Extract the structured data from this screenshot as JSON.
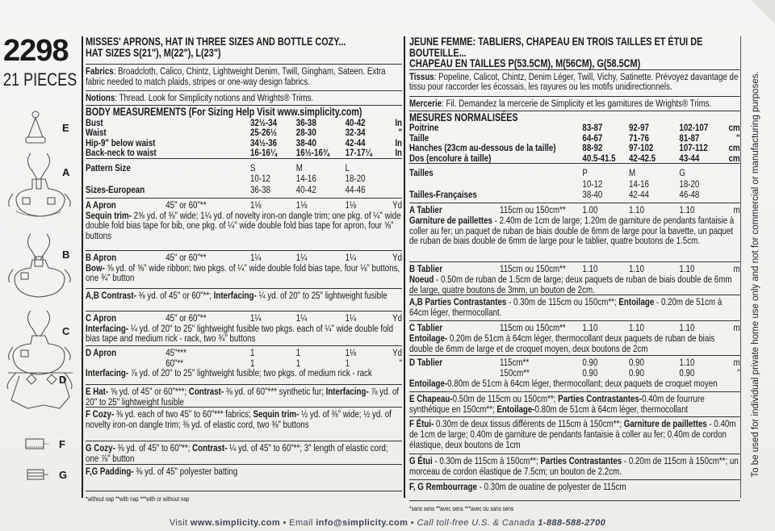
{
  "header": {
    "pattern_number": "2298",
    "pieces": "21 PIECES"
  },
  "views": [
    "E",
    "A",
    "B",
    "C",
    "D",
    "F",
    "G"
  ],
  "english": {
    "title": [
      "MISSES' APRONS, HAT IN THREE SIZES AND BOTTLE COZY...",
      "HAT SIZES S(21\"), M(22\"), L(23\")"
    ],
    "fabrics": [
      {
        "bold": "Fabrics",
        "text": ": Broadcloth, Calico, Chintz, Lightweight Denim, Twill, Gingham, Sateen. Extra fabric needed to match plaids, stripes or one-way design fabrics."
      }
    ],
    "notions": [
      {
        "bold": "Notions",
        "text": ": Thread. Look for Simplicity notions and Wrights® Trims."
      }
    ],
    "measurements": {
      "heading": "BODY MEASUREMENTS (For Sizing Help Visit www.simplicity.com)",
      "rows": [
        {
          "label": "Bust",
          "values": [
            "32½-34",
            "36-38",
            "40-42"
          ],
          "unit": "In"
        },
        {
          "label": "Waist",
          "values": [
            "25-26½",
            "28-30",
            "32-34"
          ],
          "unit": "\""
        },
        {
          "label": "Hip-9\" below waist",
          "values": [
            "34½-36",
            "38-40",
            "42-44"
          ],
          "unit": "In"
        },
        {
          "label": "Back-neck to waist",
          "values": [
            "16-16¼",
            "16½-16¾",
            "17-17¼"
          ],
          "unit": "In"
        }
      ]
    },
    "sizes": {
      "rows": [
        {
          "label": "Pattern Size",
          "values": [
            "S",
            "M",
            "L"
          ]
        },
        {
          "label": "",
          "values": [
            "10-12",
            "14-16",
            "18-20"
          ]
        },
        {
          "label": "Sizes-European",
          "values": [
            "36-38",
            "40-42",
            "44-46"
          ]
        }
      ]
    },
    "yardage": [
      {
        "rows": [
          {
            "name": "A Apron",
            "width": "45\" or 60\"**",
            "values": [
              "1⅛",
              "1⅛",
              "1⅛"
            ],
            "unit": "Yd"
          }
        ],
        "notes": [
          {
            "bold": "Sequin trim-",
            "text": " 2⅝ yd. of ⅜\" wide; 1¼ yd. of novelty iron-on dangle trim; one pkg. of ¼\" wide double fold bias tape for bib, one pkg. of ¼\" wide double fold bias tape for apron, four ⅝\" buttons"
          }
        ]
      },
      {
        "rows": [
          {
            "name": "B Apron",
            "width": "45\" or 60\"**",
            "values": [
              "1¼",
              "1¼",
              "1¼"
            ],
            "unit": "Yd"
          }
        ],
        "notes": [
          {
            "bold": "Bow-",
            "text": " ⅝ yd. of ⅝\" wide ribbon; two pkgs. of ¼\" wide double fold bias tape, four ⅛\" buttons, one ¾\" button"
          }
        ]
      },
      {
        "rows": [],
        "notes": [
          {
            "bold": "A,B Contrast-",
            "text": " ⅜ yd. of 45\" or 60\"**; "
          },
          {
            "bold": "Interfacing-",
            "text": " ¼ yd. of 20\" to 25\" lightweight fusible"
          }
        ]
      },
      {
        "rows": [
          {
            "name": "C Apron",
            "width": "45\" or 60\"**",
            "values": [
              "1¼",
              "1¼",
              "1¼"
            ],
            "unit": "Yd"
          }
        ],
        "notes": [
          {
            "bold": "Interfacing-",
            "text": " ¼ yd. of 20\" to 25\" lightweight fusible two pkgs. each of ¼\" wide double fold bias tape and medium rick - rack, two ¾\" buttons"
          }
        ]
      },
      {
        "rows": [
          {
            "name": "D Apron",
            "width": "45\"***",
            "values": [
              "1",
              "1",
              "1⅛"
            ],
            "unit": "Yd"
          },
          {
            "name": "",
            "width": "60\"**",
            "values": [
              "1",
              "1",
              "1"
            ],
            "unit": "\""
          }
        ],
        "notes": [
          {
            "bold": "Interfacing-",
            "text": " ⅞ yd. of 20\" to 25\" lightweight fusible; two pkgs. of medium rick - rack"
          }
        ]
      },
      {
        "rows": [],
        "notes": [
          {
            "bold": "E Hat-",
            "text": " ⅝ yd. of 45\" or 60\"***; "
          },
          {
            "bold": "Contrast-",
            "text": " ⅜ yd. of 60\"*** synthetic fur; "
          },
          {
            "bold": "Interfacing-",
            "text": " ⅞ yd. of 20\" to 25\" lightweight fusible"
          }
        ]
      },
      {
        "rows": [],
        "notes": [
          {
            "bold": "F Cozy-",
            "text": " ⅜ yd. each of two 45\" to 60\"*** fabrics; "
          },
          {
            "bold": "Sequin trim-",
            "text": " ½ yd. of ⅜\" wide; ½ yd. of novelty iron-on dangle trim; ⅜ yd. of elastic cord, two ⅜\" buttons"
          }
        ]
      },
      {
        "rows": [],
        "notes": [
          {
            "bold": "G Cozy-",
            "text": " ⅜ yd. of 45\" to 60\"**; "
          },
          {
            "bold": "Contrast-",
            "text": " ¼ yd. of 45\" to 60\"**; 3\" length of elastic cord; one ⅞\" button"
          }
        ]
      },
      {
        "rows": [],
        "notes": [
          {
            "bold": "F,G Padding-",
            "text": " ⅜ yd. of 45\" polyester batting"
          }
        ]
      }
    ],
    "footnote": "*without nap    **with nap    ***with or without nap"
  },
  "french": {
    "title": [
      "JEUNE FEMME: TABLIERS, CHAPEAU EN TROIS TAILLES ET ÉTUI DE BOUTEILLE...",
      "CHAPEAU EN TAILLES P(53.5CM), M(56CM), G(58.5CM)"
    ],
    "fabrics": [
      {
        "bold": "Tissus",
        "text": ": Popeline, Calicot, Chintz, Denim Léger, Twill, Vichy, Satinette. Prévoyez davantage de tissu pour raccorder les écossais, les rayures ou les motifs unidirectionnels."
      }
    ],
    "notions": [
      {
        "bold": "Mercerie",
        "text": ": Fil. Demandez la mercerie de Simplicity et les garnitures de Wrights® Trims."
      }
    ],
    "measurements": {
      "heading": "MESURES NORMALISÉES",
      "rows": [
        {
          "label": "Poitrine",
          "values": [
            "83-87",
            "92-97",
            "102-107"
          ],
          "unit": "cm"
        },
        {
          "label": "Taille",
          "values": [
            "64-67",
            "71-76",
            "81-87"
          ],
          "unit": "\""
        },
        {
          "label": "Hanches (23cm au-dessous de la taille)",
          "values": [
            "88-92",
            "97-102",
            "107-112"
          ],
          "unit": "cm"
        },
        {
          "label": "Dos (encolure à taille)",
          "values": [
            "40.5-41.5",
            "42-42.5",
            "43-44"
          ],
          "unit": "cm"
        }
      ]
    },
    "sizes": {
      "rows": [
        {
          "label": "Tailles",
          "values": [
            "P",
            "M",
            "G"
          ]
        },
        {
          "label": "",
          "values": [
            "10-12",
            "14-16",
            "18-20"
          ]
        },
        {
          "label": "Tailles-Françaises",
          "values": [
            "38-40",
            "42-44",
            "46-48"
          ]
        }
      ]
    },
    "yardage": [
      {
        "rows": [
          {
            "name": "A Tablier",
            "width": "115cm ou 150cm**",
            "values": [
              "1.00",
              "1.10",
              "1.10"
            ],
            "unit": "m"
          }
        ],
        "notes": [
          {
            "bold": "Garniture de paillettes",
            "text": " - 2.40m de 1cm de large; 1.20m de garniture de pendants fantaisie à coller au fer; un paquet de ruban de biais double de 6mm de large pour la bavette, un paquet de ruban de biais double de 6mm de large pour le tablier, quatre boutons de 1.5cm."
          }
        ]
      },
      {
        "rows": [
          {
            "name": "B Tablier",
            "width": "115cm ou 150cm**",
            "values": [
              "1.10",
              "1.10",
              "1.10"
            ],
            "unit": "m"
          }
        ],
        "notes": [
          {
            "bold": "Noeud",
            "text": " - 0.50m de ruban de 1.5cm de large; deux paquets de ruban de biais double de 6mm de large, quatre boutons de 3mm, un bouton de 2cm."
          }
        ]
      },
      {
        "rows": [],
        "notes": [
          {
            "bold": "A,B Parties Contrastantes",
            "text": " - 0.30m de 115cm ou 150cm**; "
          },
          {
            "bold": "Entoilage",
            "text": " - 0.20m de 51cm à 64cm léger, thermocollant."
          }
        ]
      },
      {
        "rows": [
          {
            "name": "C Tablier",
            "width": "115cm ou 150cm**",
            "values": [
              "1.10",
              "1.10",
              "1.10"
            ],
            "unit": "m"
          }
        ],
        "notes": [
          {
            "bold": "Entoilage-",
            "text": " 0.20m de 51cm à 64cm léger, thermocollant deux paquets de ruban de biais double de 6mm de large et de croquet moyen, deux boutons de 2cm"
          }
        ]
      },
      {
        "rows": [
          {
            "name": "D Tablier",
            "width": "115cm**",
            "values": [
              "0.90",
              "0.90",
              "1.10"
            ],
            "unit": "m"
          },
          {
            "name": "",
            "width": "150cm**",
            "values": [
              "0.90",
              "0.90",
              "0.90"
            ],
            "unit": "\""
          }
        ],
        "notes": [
          {
            "bold": "Entoilage-",
            "text": "0.80m de 51cm à 64cm léger, thermocollant; deux paquets de croquet moyen"
          }
        ]
      },
      {
        "rows": [],
        "notes": [
          {
            "bold": "E Chapeau-",
            "text": "0.50m de 115cm ou 150cm**; "
          },
          {
            "bold": "Parties Contrastantes-",
            "text": "0.40m de fourrure synthétique en 150cm**; "
          },
          {
            "bold": "Entoilage-",
            "text": "0.80m de 51cm à 64cm léger, thermocollant"
          }
        ]
      },
      {
        "rows": [],
        "notes": [
          {
            "bold": "F Étui-",
            "text": " 0.30m de deux tissus différents de 115cm à 150cm**; "
          },
          {
            "bold": "Garniture de paillettes",
            "text": " - 0.40m de 1cm de large; 0.40m de garniture de pendants fantaisie à coller au fer; 0.40m de cordon élastique, deux boutons de 1cm"
          }
        ]
      },
      {
        "rows": [],
        "notes": [
          {
            "bold": "G Étui",
            "text": " - 0.30m de 115cm à 150cm**; "
          },
          {
            "bold": "Parties Contrastantes",
            "text": " - 0.20m de 115cm à 150cm**; un morceau de cordon élastique de 7.5cm; un bouton de 2.2cm."
          }
        ]
      },
      {
        "rows": [],
        "notes": [
          {
            "bold": "F, G Rembourrage",
            "text": " - 0.30m de ouatine de polyester de 115cm"
          }
        ]
      }
    ],
    "footnote": "*sans sens    **avec sens    ***avec ou sans sens"
  },
  "side_notice": "To be used for individual private home use only and not for commercial or manufacturing purposes.",
  "footer": {
    "visit": "Visit",
    "website": "www.simplicity.com",
    "email_label": "Email",
    "email": "info@simplicity.com",
    "call": "Call toll-free U.S. & Canada",
    "phone": "1-888-588-2700"
  }
}
